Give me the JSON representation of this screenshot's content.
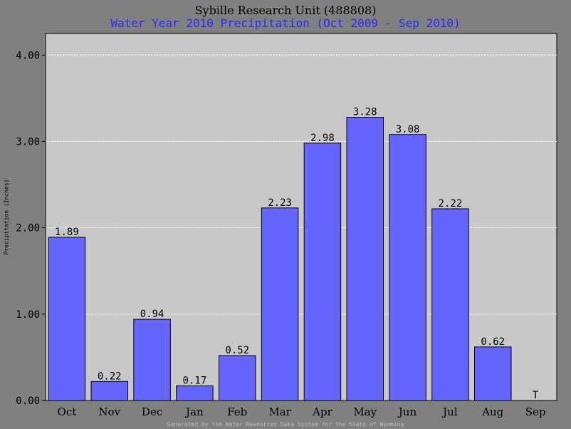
{
  "chart_data": {
    "type": "bar",
    "title": "Sybille Research Unit (488808)",
    "subtitle": "Water Year 2010 Precipitation (Oct 2009 - Sep 2010)",
    "xlabel": "",
    "ylabel": "Precipitation (Inches)",
    "footer": "Generated by the Water Resources Data System for the State of Wyoming",
    "categories": [
      "Oct",
      "Nov",
      "Dec",
      "Jan",
      "Feb",
      "Mar",
      "Apr",
      "May",
      "Jun",
      "Jul",
      "Aug",
      "Sep"
    ],
    "values": [
      1.89,
      0.22,
      0.94,
      0.17,
      0.52,
      2.23,
      2.98,
      3.28,
      3.08,
      2.22,
      0.62,
      0
    ],
    "data_labels": [
      "1.89",
      "0.22",
      "0.94",
      "0.17",
      "0.52",
      "2.23",
      "2.98",
      "3.28",
      "3.08",
      "2.22",
      "0.62",
      "T"
    ],
    "yticks": [
      0,
      1,
      2,
      3,
      4
    ],
    "ytick_labels": [
      "0.00",
      "1.00",
      "2.00",
      "3.00",
      "4.00"
    ],
    "ylim": [
      0,
      4.25
    ],
    "grid": true,
    "colors": {
      "bar": "#6666ff",
      "plot_bg": "#c8c8c8",
      "page_bg": "#808080",
      "subtitle": "#2b2bff",
      "grid": "#ffffff"
    }
  }
}
